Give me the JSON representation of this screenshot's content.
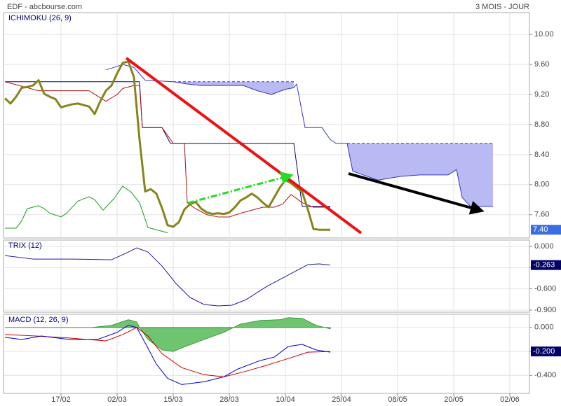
{
  "header": {
    "source": "EDF - abcbourse.com",
    "period": "3 MOIS - JOUR"
  },
  "chart_data": [
    {
      "type": "line",
      "title": "ICHIMOKU (26, 9)",
      "grid": true,
      "xlim": [
        -0.25,
        93.5
      ],
      "ylim": [
        7.29,
        10.29
      ],
      "yticks": [
        {
          "value": 7.6,
          "label": "7.60"
        },
        {
          "value": 8,
          "label": "8.00"
        },
        {
          "value": 8.4,
          "label": "8.40"
        },
        {
          "value": 8.8,
          "label": "8.80"
        },
        {
          "value": 9.2,
          "label": "9.20"
        },
        {
          "value": 9.6,
          "label": "9.60"
        },
        {
          "value": 10,
          "label": "10.00"
        }
      ],
      "last_value": {
        "value": 7.4,
        "label": "7.40"
      },
      "cloud": {
        "color": "#3535c8",
        "fill": "#b9b9f3",
        "x": [
          18,
          19,
          21,
          23,
          25,
          30,
          32.5,
          35,
          37.5,
          40,
          42.5,
          45,
          47.5,
          50,
          51.5,
          52,
          53.5,
          56.5,
          58,
          59,
          61,
          62,
          66.5,
          70.5,
          74,
          79,
          80.5,
          81.5,
          83,
          87
        ],
        "span_a": [
          9.53,
          9.55,
          9.6,
          9.56,
          9.39,
          9.37,
          9.34,
          9.32,
          9.32,
          9.32,
          9.32,
          9.25,
          9.2,
          9.27,
          9.29,
          9.34,
          8.76,
          8.76,
          8.6,
          8.55,
          8.55,
          8.18,
          8.06,
          8.11,
          8.13,
          8.13,
          8.2,
          7.83,
          7.71,
          7.71
        ],
        "span_b": [
          null,
          null,
          null,
          null,
          null,
          9.37,
          9.37,
          9.37,
          9.37,
          9.37,
          9.37,
          9.37,
          9.37,
          9.37,
          9.37,
          null,
          null,
          null,
          null,
          null,
          8.55,
          8.55,
          8.55,
          8.55,
          8.55,
          8.55,
          8.55,
          8.55,
          8.55,
          8.55
        ]
      },
      "series": [
        {
          "color": "#1a9a1a",
          "width": 1,
          "x": [
            0,
            2,
            3,
            4,
            6,
            7,
            8,
            10,
            11,
            13,
            15,
            16,
            17.5,
            19.5,
            21,
            22.5,
            24,
            25.5,
            29
          ],
          "values": [
            7.42,
            7.42,
            7.52,
            7.68,
            7.72,
            7.68,
            7.62,
            7.57,
            7.62,
            7.78,
            7.84,
            7.8,
            7.66,
            7.82,
            7.98,
            7.9,
            7.76,
            7.43,
            7.36
          ]
        },
        {
          "color": "#000080",
          "width": 1,
          "x": [
            0,
            24,
            24.5,
            28,
            29.5,
            51.5,
            53,
            58
          ],
          "values": [
            9.37,
            9.37,
            8.76,
            8.76,
            8.55,
            8.55,
            7.71,
            7.71
          ]
        },
        {
          "color": "#b01010",
          "width": 1,
          "x": [
            0,
            6,
            15,
            18,
            20,
            21,
            23,
            24,
            24.5,
            28,
            30,
            32,
            32.5,
            34,
            36,
            38,
            40,
            42,
            44,
            46,
            48,
            49.5,
            51,
            53,
            55,
            58
          ],
          "values": [
            9.37,
            9.25,
            9.25,
            9.11,
            9.2,
            9.28,
            9.32,
            9.32,
            8.76,
            8.76,
            8.55,
            8.55,
            7.76,
            7.68,
            7.6,
            7.57,
            7.57,
            7.62,
            7.66,
            7.7,
            7.7,
            7.74,
            7.87,
            7.76,
            7.7,
            7.7
          ]
        },
        {
          "color": "#85851c",
          "width": 3,
          "x": [
            0,
            1,
            2,
            3,
            4,
            5,
            6,
            7,
            8,
            9,
            10,
            11,
            12,
            13,
            14,
            15,
            16,
            17,
            18,
            19,
            20,
            21,
            22,
            23,
            24,
            25,
            26,
            27,
            28,
            29,
            30,
            31,
            32,
            33,
            34,
            35,
            36,
            37,
            38,
            39,
            40,
            41,
            42,
            43,
            44,
            45,
            46,
            47,
            48,
            49,
            50,
            51,
            52,
            53,
            54,
            55,
            56,
            57,
            58
          ],
          "values": [
            9.15,
            9.08,
            9.17,
            9.29,
            9.3,
            9.32,
            9.39,
            9.21,
            9.17,
            9.14,
            9.03,
            9.05,
            9.07,
            9.08,
            9.06,
            9.04,
            8.94,
            9.11,
            9.25,
            9.32,
            9.48,
            9.62,
            9.64,
            9.43,
            8.6,
            7.91,
            7.94,
            7.88,
            7.69,
            7.46,
            7.44,
            7.5,
            7.67,
            7.74,
            7.77,
            7.68,
            7.63,
            7.61,
            7.62,
            7.61,
            7.63,
            7.7,
            7.79,
            7.83,
            7.88,
            7.83,
            7.76,
            7.7,
            7.83,
            7.96,
            8.06,
            8.02,
            7.96,
            7.9,
            7.67,
            7.41,
            7.4,
            7.4,
            7.4
          ]
        }
      ]
    },
    {
      "type": "line",
      "title": "TRIX (12)",
      "grid": true,
      "xlim": [
        -0.25,
        93.5
      ],
      "ylim": [
        -0.93,
        0.09
      ],
      "yticks": [
        {
          "value": -0.9,
          "label": "-0.900"
        },
        {
          "value": -0.6,
          "label": "-0.600"
        },
        {
          "value": -0.3,
          "label": "-0.300"
        },
        {
          "value": 0,
          "label": "0.000"
        }
      ],
      "last_value": -0.263,
      "series": [
        {
          "color": "#1a1aa0",
          "width": 1,
          "x": [
            0,
            5,
            12,
            19,
            21.5,
            23.5,
            25.5,
            28,
            30.5,
            33,
            35.5,
            38,
            40.5,
            43,
            46.5,
            50.5,
            54,
            56,
            58
          ],
          "values": [
            -0.129,
            -0.178,
            -0.178,
            -0.188,
            -0.099,
            -0.02,
            -0.079,
            -0.277,
            -0.524,
            -0.722,
            -0.821,
            -0.841,
            -0.831,
            -0.752,
            -0.574,
            -0.405,
            -0.257,
            -0.247,
            -0.263
          ]
        }
      ]
    },
    {
      "type": "line",
      "title": "MACD (12, 26, 9)",
      "grid": true,
      "xlim": [
        -0.25,
        93.5
      ],
      "ylim": [
        -0.55,
        0.11
      ],
      "xticks": [
        {
          "value": 10,
          "label": "17/02"
        },
        {
          "value": 20,
          "label": "02/03"
        },
        {
          "value": 30,
          "label": "15/03"
        },
        {
          "value": 40,
          "label": "28/03"
        },
        {
          "value": 50,
          "label": "10/04"
        },
        {
          "value": 60,
          "label": "25/04"
        },
        {
          "value": 70,
          "label": "08/05"
        },
        {
          "value": 80,
          "label": "20/05"
        },
        {
          "value": 90,
          "label": "02/06"
        }
      ],
      "yticks": [
        {
          "value": -0.4,
          "label": "-0.400"
        },
        {
          "value": -0.2,
          "label": "-0.200"
        },
        {
          "value": 0,
          "label": "0.000"
        }
      ],
      "last_value": {
        "value": -0.2,
        "label": "-0.200"
      },
      "series": [
        {
          "style": "area",
          "color": "#2f8f2f",
          "fill": "#6fc46f",
          "x": [
            0,
            15.5,
            19,
            22,
            23.5,
            24,
            25.5,
            28,
            30,
            31.5,
            35.5,
            39,
            42,
            45.5,
            49,
            50.5,
            53,
            55.5,
            58
          ],
          "values": [
            0,
            0,
            0.018,
            0.065,
            0.047,
            0,
            -0.1,
            -0.188,
            -0.2,
            -0.171,
            -0.1,
            -0.041,
            0.029,
            0.059,
            0.065,
            0.082,
            0.076,
            0.018,
            -0.012
          ]
        },
        {
          "color": "#cc0000",
          "width": 1,
          "x": [
            0,
            5.5,
            11.5,
            18,
            21,
            23.5,
            25.5,
            28,
            31.5,
            35.5,
            39,
            43,
            46.5,
            50.5,
            54,
            58
          ],
          "values": [
            -0.059,
            -0.071,
            -0.088,
            -0.112,
            -0.059,
            0,
            -0.071,
            -0.218,
            -0.335,
            -0.394,
            -0.412,
            -0.365,
            -0.318,
            -0.259,
            -0.206,
            -0.2
          ]
        },
        {
          "color": "#0000cc",
          "width": 1,
          "x": [
            0,
            3,
            6.5,
            11.5,
            16.5,
            20,
            22,
            23.5,
            25,
            27,
            29,
            31.5,
            35.5,
            39,
            41.5,
            45.5,
            48,
            50.5,
            53,
            55.5,
            58
          ],
          "values": [
            -0.082,
            -0.1,
            -0.071,
            -0.1,
            -0.1,
            -0.041,
            0.018,
            0,
            -0.129,
            -0.306,
            -0.424,
            -0.476,
            -0.453,
            -0.412,
            -0.347,
            -0.276,
            -0.247,
            -0.159,
            -0.141,
            -0.188,
            -0.206
          ]
        }
      ]
    }
  ]
}
